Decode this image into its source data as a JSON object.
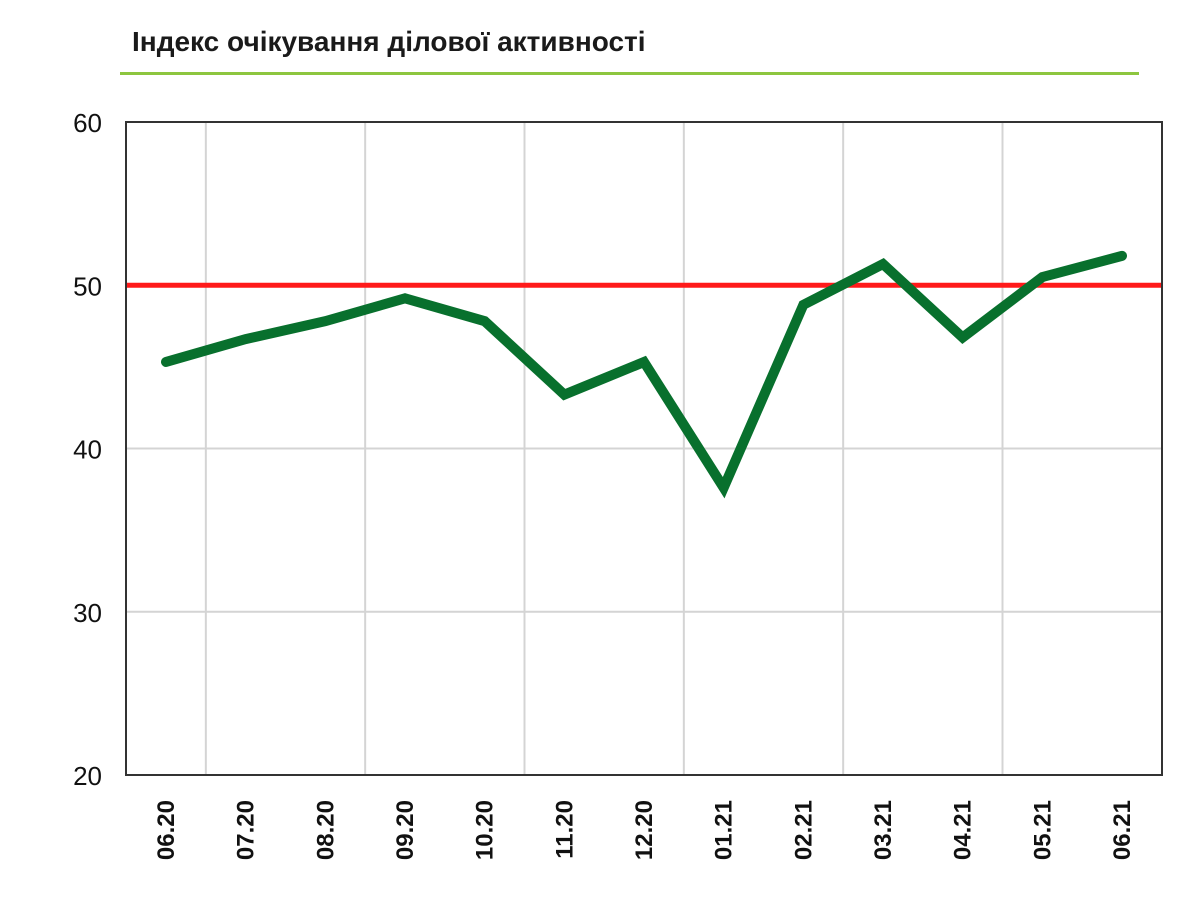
{
  "chart_data": {
    "type": "line",
    "title": "Індекс очікування ділової активності",
    "xlabel": "",
    "ylabel": "",
    "categories": [
      "06.20",
      "07.20",
      "08.20",
      "09.20",
      "10.20",
      "11.20",
      "12.20",
      "01.21",
      "02.21",
      "03.21",
      "04.21",
      "05.21",
      "06.21"
    ],
    "series": [
      {
        "values": [
          45.3,
          46.7,
          47.8,
          49.2,
          47.8,
          43.3,
          45.3,
          37.6,
          48.8,
          51.3,
          46.8,
          50.5,
          51.8
        ],
        "color": "#08702d"
      }
    ],
    "reference_line": {
      "value": 50,
      "color": "#ff1a1a"
    },
    "ylim": [
      20,
      60
    ],
    "yticks": [
      20,
      30,
      40,
      50,
      60
    ],
    "grid": true,
    "legend": "none"
  }
}
